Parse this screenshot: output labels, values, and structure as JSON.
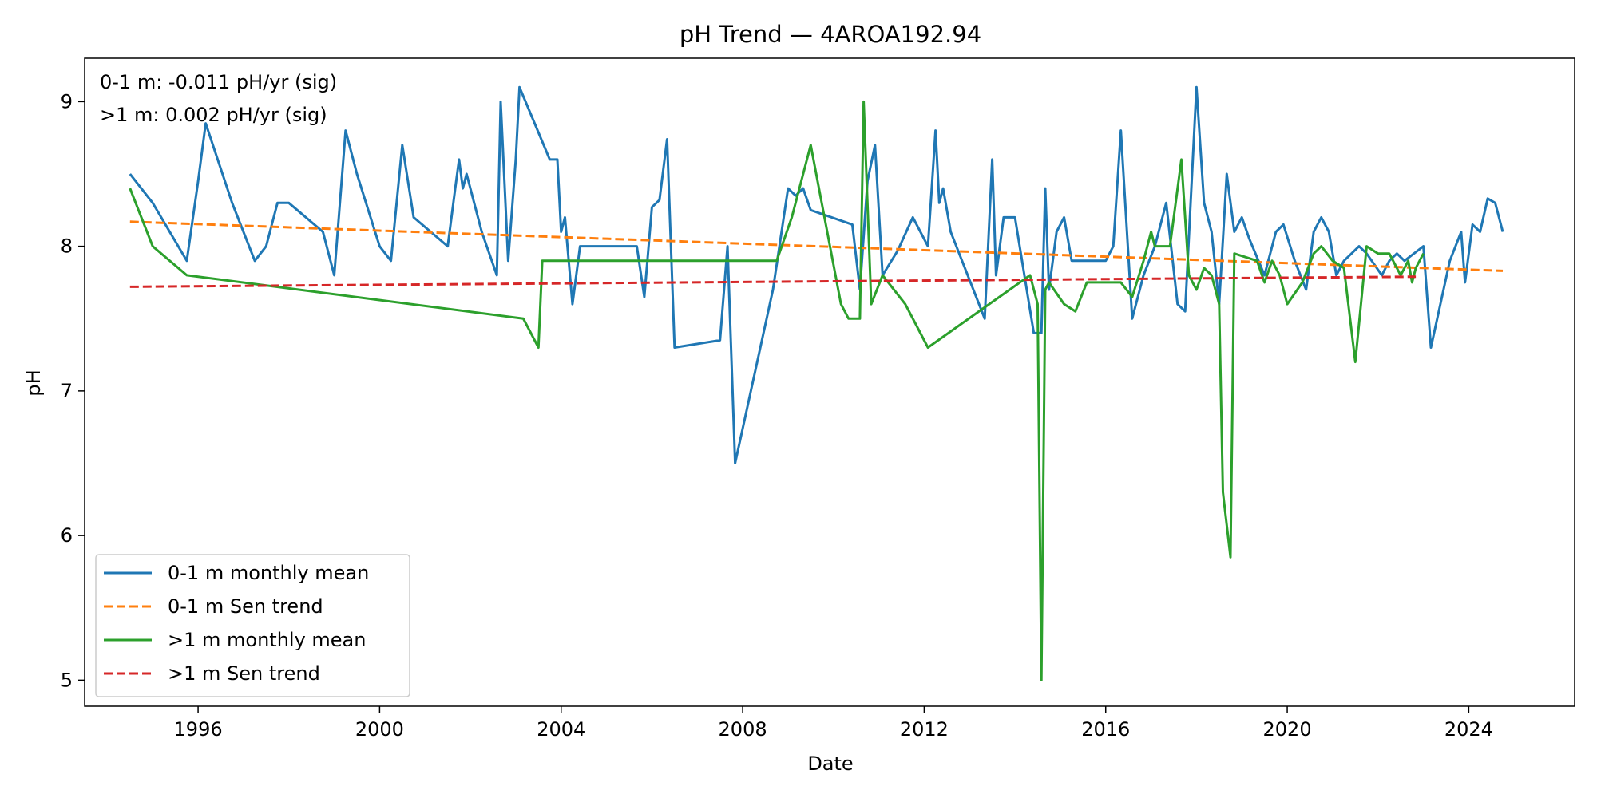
{
  "chart_data": {
    "type": "line",
    "title": "pH Trend — 4AROA192.94",
    "xlabel": "Date",
    "ylabel": "pH",
    "xlim": [
      "1993-07-01",
      "2026-05-01"
    ],
    "ylim": [
      4.82,
      9.3
    ],
    "x_ticks": [
      "1996",
      "2000",
      "2004",
      "2008",
      "2012",
      "2016",
      "2020",
      "2024"
    ],
    "y_ticks": [
      "5",
      "6",
      "7",
      "8",
      "9"
    ],
    "grid": false,
    "legend_position": "lower-left",
    "annotations": [
      "0-1 m: -0.011 pH/yr (sig)",
      ">1 m: 0.002 pH/yr (sig)"
    ],
    "series": [
      {
        "name": "0-1 m monthly mean",
        "style": "solid",
        "color": "#1f77b4",
        "points": [
          [
            "1994-07-01",
            8.5
          ],
          [
            "1995-01-01",
            8.3
          ],
          [
            "1995-10-01",
            7.9
          ],
          [
            "1996-01-01",
            8.45
          ],
          [
            "1996-03-01",
            8.85
          ],
          [
            "1996-10-01",
            8.3
          ],
          [
            "1997-04-01",
            7.9
          ],
          [
            "1997-07-01",
            8.0
          ],
          [
            "1997-10-01",
            8.3
          ],
          [
            "1998-01-01",
            8.3
          ],
          [
            "1998-10-01",
            8.1
          ],
          [
            "1999-01-01",
            7.8
          ],
          [
            "1999-04-01",
            8.8
          ],
          [
            "1999-07-01",
            8.5
          ],
          [
            "2000-01-01",
            8.0
          ],
          [
            "2000-04-01",
            7.9
          ],
          [
            "2000-07-01",
            8.7
          ],
          [
            "2000-10-01",
            8.2
          ],
          [
            "2001-07-01",
            8.0
          ],
          [
            "2001-09-01",
            8.4
          ],
          [
            "2001-10-01",
            8.6
          ],
          [
            "2001-11-01",
            8.4
          ],
          [
            "2001-12-01",
            8.5
          ],
          [
            "2002-04-01",
            8.1
          ],
          [
            "2002-08-01",
            7.8
          ],
          [
            "2002-09-01",
            9.0
          ],
          [
            "2002-11-01",
            7.9
          ],
          [
            "2003-01-01",
            8.6
          ],
          [
            "2003-02-01",
            9.1
          ],
          [
            "2003-10-01",
            8.6
          ],
          [
            "2003-12-01",
            8.6
          ],
          [
            "2004-01-01",
            8.1
          ],
          [
            "2004-02-01",
            8.2
          ],
          [
            "2004-04-01",
            7.6
          ],
          [
            "2004-06-01",
            8.0
          ],
          [
            "2005-09-01",
            8.0
          ],
          [
            "2005-11-01",
            7.65
          ],
          [
            "2006-01-01",
            8.27
          ],
          [
            "2006-03-01",
            8.32
          ],
          [
            "2006-05-01",
            8.74
          ],
          [
            "2006-07-01",
            7.3
          ],
          [
            "2007-07-01",
            7.35
          ],
          [
            "2007-09-01",
            8.0
          ],
          [
            "2007-11-01",
            6.5
          ],
          [
            "2008-09-01",
            7.7
          ],
          [
            "2009-01-01",
            8.4
          ],
          [
            "2009-03-01",
            8.35
          ],
          [
            "2009-05-01",
            8.4
          ],
          [
            "2009-07-01",
            8.25
          ],
          [
            "2010-06-01",
            8.15
          ],
          [
            "2010-08-01",
            7.7
          ],
          [
            "2010-10-01",
            8.45
          ],
          [
            "2010-12-01",
            8.7
          ],
          [
            "2011-02-01",
            7.8
          ],
          [
            "2011-06-01",
            7.97
          ],
          [
            "2011-10-01",
            8.2
          ],
          [
            "2012-02-01",
            8.0
          ],
          [
            "2012-04-01",
            8.8
          ],
          [
            "2012-05-01",
            8.3
          ],
          [
            "2012-06-01",
            8.4
          ],
          [
            "2012-08-01",
            8.1
          ],
          [
            "2013-05-01",
            7.5
          ],
          [
            "2013-07-01",
            8.6
          ],
          [
            "2013-08-01",
            7.8
          ],
          [
            "2013-10-01",
            8.2
          ],
          [
            "2014-01-01",
            8.2
          ],
          [
            "2014-06-01",
            7.4
          ],
          [
            "2014-08-01",
            7.4
          ],
          [
            "2014-09-01",
            8.4
          ],
          [
            "2014-10-01",
            7.7
          ],
          [
            "2014-12-01",
            8.1
          ],
          [
            "2015-02-01",
            8.2
          ],
          [
            "2015-04-01",
            7.9
          ],
          [
            "2016-01-01",
            7.9
          ],
          [
            "2016-03-01",
            8.0
          ],
          [
            "2016-05-01",
            8.8
          ],
          [
            "2016-08-01",
            7.5
          ],
          [
            "2016-11-01",
            7.8
          ],
          [
            "2017-02-01",
            8.0
          ],
          [
            "2017-05-01",
            8.3
          ],
          [
            "2017-08-01",
            7.6
          ],
          [
            "2017-10-01",
            7.55
          ],
          [
            "2018-01-01",
            9.1
          ],
          [
            "2018-03-01",
            8.3
          ],
          [
            "2018-05-01",
            8.1
          ],
          [
            "2018-07-01",
            7.6
          ],
          [
            "2018-09-01",
            8.5
          ],
          [
            "2018-11-01",
            8.1
          ],
          [
            "2019-01-01",
            8.2
          ],
          [
            "2019-03-01",
            8.05
          ],
          [
            "2019-07-01",
            7.8
          ],
          [
            "2019-10-01",
            8.1
          ],
          [
            "2019-12-01",
            8.15
          ],
          [
            "2020-03-01",
            7.9
          ],
          [
            "2020-06-01",
            7.7
          ],
          [
            "2020-08-01",
            8.1
          ],
          [
            "2020-10-01",
            8.2
          ],
          [
            "2020-12-01",
            8.1
          ],
          [
            "2021-02-01",
            7.8
          ],
          [
            "2021-04-01",
            7.9
          ],
          [
            "2021-06-01",
            7.95
          ],
          [
            "2021-08-01",
            8.0
          ],
          [
            "2021-10-01",
            7.95
          ],
          [
            "2022-02-01",
            7.8
          ],
          [
            "2022-04-01",
            7.9
          ],
          [
            "2022-06-01",
            7.95
          ],
          [
            "2022-08-01",
            7.9
          ],
          [
            "2023-01-01",
            8.0
          ],
          [
            "2023-03-01",
            7.3
          ],
          [
            "2023-08-01",
            7.9
          ],
          [
            "2023-11-01",
            8.1
          ],
          [
            "2023-12-01",
            7.75
          ],
          [
            "2024-02-01",
            8.15
          ],
          [
            "2024-04-01",
            8.1
          ],
          [
            "2024-06-01",
            8.33
          ],
          [
            "2024-08-01",
            8.3
          ],
          [
            "2024-10-01",
            8.1
          ]
        ]
      },
      {
        "name": "0-1 m Sen trend",
        "style": "dashed",
        "color": "#ff7f0e",
        "points": [
          [
            "1994-07-01",
            8.17
          ],
          [
            "2024-10-01",
            7.83
          ]
        ]
      },
      {
        "name": ">1 m monthly mean",
        "style": "solid",
        "color": "#2ca02c",
        "points": [
          [
            "1994-07-01",
            8.4
          ],
          [
            "1994-10-01",
            8.2
          ],
          [
            "1995-01-01",
            8.0
          ],
          [
            "1995-10-01",
            7.8
          ],
          [
            "2003-03-01",
            7.5
          ],
          [
            "2003-07-01",
            7.3
          ],
          [
            "2003-08-01",
            7.9
          ],
          [
            "2003-10-01",
            7.9
          ],
          [
            "2008-10-01",
            7.9
          ],
          [
            "2009-02-01",
            8.2
          ],
          [
            "2009-07-01",
            8.7
          ],
          [
            "2010-03-01",
            7.6
          ],
          [
            "2010-05-01",
            7.5
          ],
          [
            "2010-08-01",
            7.5
          ],
          [
            "2010-09-01",
            9.0
          ],
          [
            "2010-11-01",
            7.6
          ],
          [
            "2011-02-01",
            7.8
          ],
          [
            "2011-08-01",
            7.6
          ],
          [
            "2012-02-01",
            7.3
          ],
          [
            "2014-05-01",
            7.8
          ],
          [
            "2014-07-01",
            7.6
          ],
          [
            "2014-08-01",
            5.0
          ],
          [
            "2014-09-01",
            7.7
          ],
          [
            "2014-10-01",
            7.75
          ],
          [
            "2015-02-01",
            7.6
          ],
          [
            "2015-05-01",
            7.55
          ],
          [
            "2015-08-01",
            7.75
          ],
          [
            "2016-05-01",
            7.75
          ],
          [
            "2016-08-01",
            7.65
          ],
          [
            "2016-11-01",
            7.9
          ],
          [
            "2017-01-01",
            8.1
          ],
          [
            "2017-02-01",
            8.0
          ],
          [
            "2017-06-01",
            8.0
          ],
          [
            "2017-09-01",
            8.6
          ],
          [
            "2017-11-01",
            7.8
          ],
          [
            "2018-01-01",
            7.7
          ],
          [
            "2018-03-01",
            7.85
          ],
          [
            "2018-05-01",
            7.8
          ],
          [
            "2018-07-01",
            7.6
          ],
          [
            "2018-08-01",
            6.3
          ],
          [
            "2018-10-01",
            5.85
          ],
          [
            "2018-11-01",
            7.95
          ],
          [
            "2019-05-01",
            7.9
          ],
          [
            "2019-07-01",
            7.75
          ],
          [
            "2019-09-01",
            7.9
          ],
          [
            "2019-11-01",
            7.8
          ],
          [
            "2020-01-01",
            7.6
          ],
          [
            "2020-05-01",
            7.75
          ],
          [
            "2020-08-01",
            7.95
          ],
          [
            "2020-10-01",
            8.0
          ],
          [
            "2021-01-01",
            7.9
          ],
          [
            "2021-04-01",
            7.85
          ],
          [
            "2021-07-01",
            7.2
          ],
          [
            "2021-10-01",
            8.0
          ],
          [
            "2022-01-01",
            7.95
          ],
          [
            "2022-04-01",
            7.95
          ],
          [
            "2022-07-01",
            7.8
          ],
          [
            "2022-09-01",
            7.9
          ],
          [
            "2022-10-01",
            7.75
          ],
          [
            "2022-11-01",
            7.85
          ],
          [
            "2023-01-01",
            7.95
          ]
        ]
      },
      {
        "name": ">1 m Sen trend",
        "style": "dashed",
        "color": "#d62728",
        "points": [
          [
            "1994-07-01",
            7.72
          ],
          [
            "2022-11-01",
            7.79
          ]
        ]
      }
    ]
  }
}
